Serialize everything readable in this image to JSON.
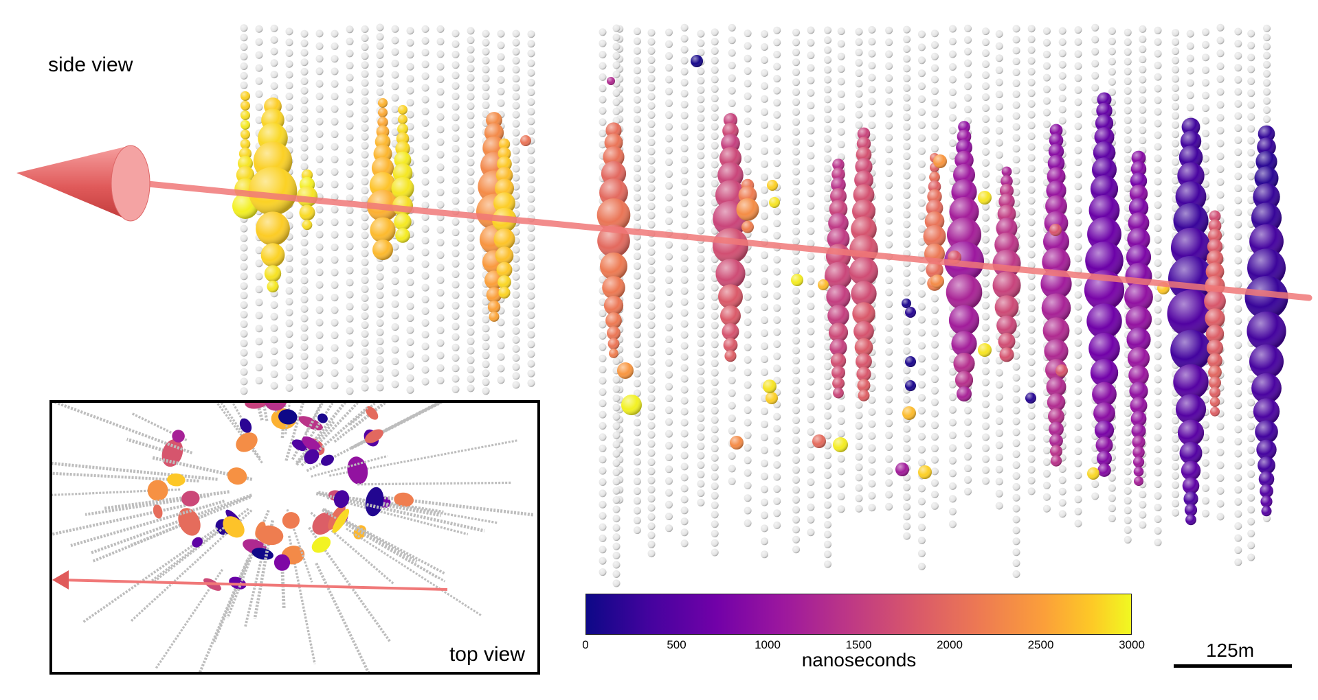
{
  "labels": {
    "side_view": "side view",
    "top_view": "top view",
    "colorbar_title": "nanoseconds",
    "scale_bar": "125m"
  },
  "colorbar": {
    "ticks": [
      "0",
      "500",
      "1000",
      "1500",
      "2000",
      "2500",
      "3000"
    ],
    "range": [
      0,
      3000
    ],
    "unit": "nanoseconds",
    "colormap": "plasma",
    "colors": [
      "#0d0887",
      "#46039f",
      "#7201a8",
      "#9c179e",
      "#bd3786",
      "#d8576b",
      "#ed7953",
      "#fb9f3a",
      "#fdca26",
      "#f0f921"
    ]
  },
  "track_color": "#f07878",
  "sensor_color": "#e6e6e6"
}
